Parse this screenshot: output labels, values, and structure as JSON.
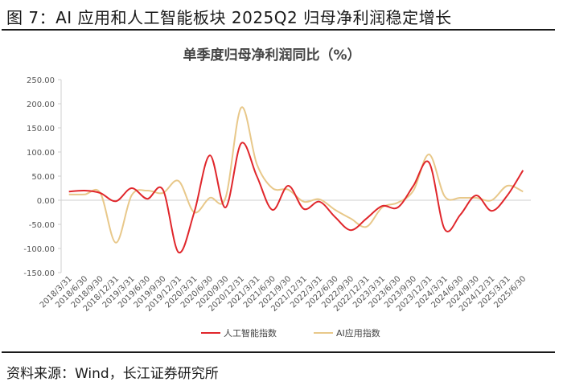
{
  "figure_title": "图 7：AI 应用和人工智能板块 2025Q2 归母净利润稳定增长",
  "source": "资料来源：Wind，长江证券研究所",
  "colors": {
    "series_1": "#e0262b",
    "series_2": "#e8c88a",
    "axis": "#cfcfcf",
    "text": "#555555",
    "title": "#444444"
  },
  "chart_data": {
    "type": "line",
    "title": "单季度归母净利润同比（%）",
    "xlabel": "",
    "ylabel": "",
    "ylim": [
      -150,
      250
    ],
    "yticks": [
      "250.00",
      "200.00",
      "150.00",
      "100.00",
      "50.00",
      "0.00",
      "-50.00",
      "-100.00",
      "-150.00"
    ],
    "grid": false,
    "legend": "bottom",
    "x": [
      "2018/3/31",
      "2018/6/30",
      "2018/9/30",
      "2018/12/31",
      "2019/3/31",
      "2019/6/30",
      "2019/9/30",
      "2019/12/31",
      "2020/3/31",
      "2020/6/30",
      "2020/9/30",
      "2020/12/31",
      "2021/3/31",
      "2021/6/30",
      "2021/9/30",
      "2021/12/31",
      "2022/3/31",
      "2022/6/30",
      "2022/9/30",
      "2022/12/31",
      "2023/3/31",
      "2023/6/30",
      "2023/9/30",
      "2023/12/31",
      "2024/3/31",
      "2024/6/30",
      "2024/9/30",
      "2024/12/31",
      "2025/3/31",
      "2025/6/30"
    ],
    "series": [
      {
        "name": "人工智能指数",
        "values": [
          18,
          20,
          15,
          -2,
          25,
          3,
          22,
          -108,
          -25,
          93,
          -15,
          118,
          50,
          -20,
          30,
          -18,
          -3,
          -35,
          -62,
          -38,
          -12,
          -15,
          30,
          78,
          -60,
          -30,
          10,
          -22,
          10,
          62
        ]
      },
      {
        "name": "AI应用指数",
        "values": [
          12,
          12,
          15,
          -88,
          10,
          20,
          15,
          40,
          -25,
          5,
          5,
          192,
          75,
          25,
          22,
          -3,
          2,
          -20,
          -38,
          -55,
          -15,
          -5,
          20,
          95,
          8,
          5,
          5,
          0,
          30,
          18
        ]
      }
    ]
  }
}
